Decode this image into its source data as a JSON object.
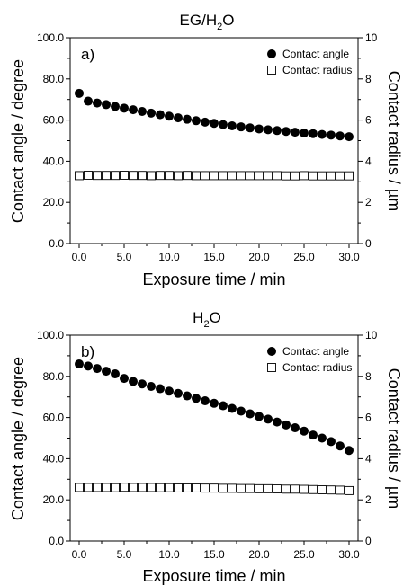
{
  "charts": [
    {
      "title_main": "EG/H",
      "title_sub": "2",
      "title_tail": "O",
      "panel_label": "a)",
      "xlabel": "Exposure time / min",
      "ylabel_left": "Contact angle / degree",
      "ylabel_right": "Contact radius / µm",
      "x_ticks": [
        "0.0",
        "5.0",
        "10.0",
        "15.0",
        "20.0",
        "25.0",
        "30.0"
      ],
      "y_left_ticks": [
        "0.0",
        "20.0",
        "40.0",
        "60.0",
        "80.0",
        "100.0"
      ],
      "y_right_ticks": [
        "0",
        "2",
        "4",
        "6",
        "8",
        "10"
      ],
      "legend": {
        "angle": "Contact angle",
        "radius": "Contact radius"
      }
    },
    {
      "title_main": "H",
      "title_sub": "2",
      "title_tail": "O",
      "panel_label": "b)",
      "xlabel": "Exposure time / min",
      "ylabel_left": "Contact angle / degree",
      "ylabel_right": "Contact radius / µm",
      "x_ticks": [
        "0.0",
        "5.0",
        "10.0",
        "15.0",
        "20.0",
        "25.0",
        "30.0"
      ],
      "y_left_ticks": [
        "0.0",
        "20.0",
        "40.0",
        "60.0",
        "80.0",
        "100.0"
      ],
      "y_right_ticks": [
        "0",
        "2",
        "4",
        "6",
        "8",
        "10"
      ],
      "legend": {
        "angle": "Contact angle",
        "radius": "Contact radius"
      }
    }
  ],
  "chart_data": [
    {
      "type": "scatter",
      "title": "EG/H2O",
      "xlabel": "Exposure time / min",
      "ylabel": "Contact angle / degree",
      "y2label": "Contact radius / µm",
      "xlim": [
        -1,
        31
      ],
      "ylim": [
        0,
        100
      ],
      "y2lim": [
        0,
        10
      ],
      "grid": false,
      "legend_position": "top-right",
      "series": [
        {
          "name": "Contact angle",
          "axis": "left",
          "marker": "filled-circle",
          "x": [
            0,
            1,
            2,
            3,
            4,
            5,
            6,
            7,
            8,
            9,
            10,
            11,
            12,
            13,
            14,
            15,
            16,
            17,
            18,
            19,
            20,
            21,
            22,
            23,
            24,
            25,
            26,
            27,
            28,
            29,
            30
          ],
          "y": [
            73.0,
            69.2,
            68.3,
            67.5,
            66.6,
            65.8,
            65.0,
            64.2,
            63.4,
            62.6,
            61.9,
            61.1,
            60.4,
            59.7,
            59.0,
            58.4,
            57.8,
            57.2,
            56.7,
            56.2,
            55.7,
            55.3,
            54.9,
            54.5,
            54.1,
            53.7,
            53.4,
            53.0,
            52.7,
            52.3,
            51.9
          ]
        },
        {
          "name": "Contact radius",
          "axis": "right",
          "marker": "open-square",
          "x": [
            0,
            1,
            2,
            3,
            4,
            5,
            6,
            7,
            8,
            9,
            10,
            11,
            12,
            13,
            14,
            15,
            16,
            17,
            18,
            19,
            20,
            21,
            22,
            23,
            24,
            25,
            26,
            27,
            28,
            29,
            30
          ],
          "y": [
            3.3,
            3.32,
            3.31,
            3.31,
            3.31,
            3.32,
            3.31,
            3.31,
            3.3,
            3.31,
            3.31,
            3.3,
            3.31,
            3.3,
            3.3,
            3.3,
            3.3,
            3.3,
            3.3,
            3.3,
            3.3,
            3.3,
            3.3,
            3.29,
            3.29,
            3.3,
            3.29,
            3.29,
            3.29,
            3.29,
            3.29
          ]
        }
      ]
    },
    {
      "type": "scatter",
      "title": "H2O",
      "xlabel": "Exposure time / min",
      "ylabel": "Contact angle / degree",
      "y2label": "Contact radius / µm",
      "xlim": [
        -1,
        31
      ],
      "ylim": [
        0,
        100
      ],
      "y2lim": [
        0,
        10
      ],
      "grid": false,
      "legend_position": "top-right",
      "series": [
        {
          "name": "Contact angle",
          "axis": "left",
          "marker": "filled-circle",
          "x": [
            0,
            1,
            2,
            3,
            4,
            5,
            6,
            7,
            8,
            9,
            10,
            11,
            12,
            13,
            14,
            15,
            16,
            17,
            18,
            19,
            20,
            21,
            22,
            23,
            24,
            25,
            26,
            27,
            28,
            29,
            30
          ],
          "y": [
            86.0,
            85.0,
            83.8,
            82.5,
            81.2,
            79.0,
            77.5,
            76.3,
            75.1,
            74.0,
            72.8,
            71.7,
            70.5,
            69.3,
            68.1,
            66.9,
            65.7,
            64.4,
            63.1,
            61.8,
            60.5,
            59.2,
            57.8,
            56.4,
            55.0,
            53.4,
            51.5,
            50.0,
            48.3,
            46.2,
            44.0
          ]
        },
        {
          "name": "Contact radius",
          "axis": "right",
          "marker": "open-square",
          "x": [
            0,
            1,
            2,
            3,
            4,
            5,
            6,
            7,
            8,
            9,
            10,
            11,
            12,
            13,
            14,
            15,
            16,
            17,
            18,
            19,
            20,
            21,
            22,
            23,
            24,
            25,
            26,
            27,
            28,
            29,
            30
          ],
          "y": [
            2.6,
            2.6,
            2.6,
            2.6,
            2.59,
            2.61,
            2.6,
            2.6,
            2.6,
            2.59,
            2.59,
            2.58,
            2.58,
            2.58,
            2.57,
            2.57,
            2.56,
            2.56,
            2.55,
            2.55,
            2.54,
            2.54,
            2.53,
            2.52,
            2.52,
            2.51,
            2.5,
            2.49,
            2.48,
            2.47,
            2.45
          ]
        }
      ]
    }
  ]
}
